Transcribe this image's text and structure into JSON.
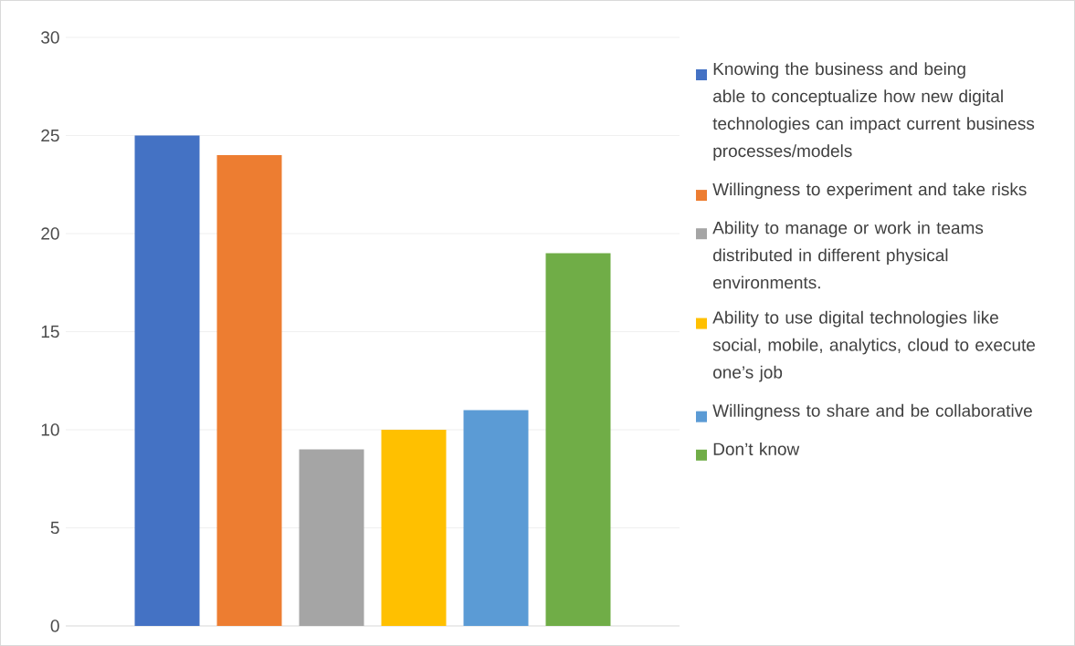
{
  "chart_data": {
    "type": "bar",
    "categories": [
      null
    ],
    "ylim": [
      0,
      30
    ],
    "yticks": [
      0,
      5,
      10,
      15,
      20,
      25,
      30
    ],
    "grid": "y",
    "legend": "right",
    "series": [
      {
        "name": "Knowing the business and being able to conceptualize how new digital technologies can impact current business processes/models",
        "color": "#4472c4",
        "values": [
          25
        ]
      },
      {
        "name": "Willingness to experiment and take risks",
        "color": "#ed7d31",
        "values": [
          24
        ]
      },
      {
        "name": "Ability to manage or work in teams distributed in different physical environments.",
        "color": "#a5a5a5",
        "values": [
          9
        ]
      },
      {
        "name": "Ability to use digital technologies like social, mobile, analytics, cloud to execute one’s job",
        "color": "#ffc000",
        "values": [
          10
        ]
      },
      {
        "name": "Willingness to share and be collaborative",
        "color": "#5b9bd5",
        "values": [
          11
        ]
      },
      {
        "name": "Don’t know",
        "color": "#70ad47",
        "values": [
          19
        ]
      }
    ]
  }
}
